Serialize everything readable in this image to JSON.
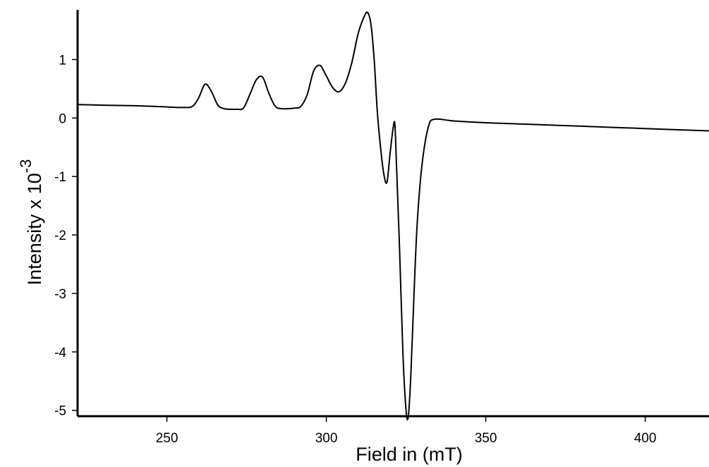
{
  "chart_data": {
    "type": "line",
    "title": "",
    "xlabel": "Field in (mT)",
    "ylabel": "Intensity  x 10",
    "ylabel_exponent": "-3",
    "xlim": [
      222,
      420
    ],
    "ylim": [
      -5.1,
      1.85
    ],
    "x_ticks": [
      "250",
      "300",
      "350",
      "400"
    ],
    "y_ticks": [
      "1",
      "0",
      "-1",
      "-2",
      "-3",
      "-4",
      "-5"
    ],
    "grid": false,
    "legend": "none",
    "line_color": "#000000",
    "series": [
      {
        "x": [
          222,
          230,
          240,
          250,
          255,
          258,
          260,
          262,
          264,
          266,
          268,
          270,
          272,
          274,
          276,
          278,
          280,
          282,
          284,
          286,
          288,
          290,
          292,
          294,
          296,
          298,
          300,
          302,
          304,
          306,
          308,
          310,
          312,
          313,
          314,
          315,
          316,
          317,
          318,
          319,
          320,
          321,
          321.5,
          322,
          323,
          324,
          325,
          325.7,
          326.5,
          327.5,
          328.5,
          330,
          332,
          334,
          340,
          350,
          360,
          380,
          400,
          420
        ],
        "y": [
          0.23,
          0.22,
          0.21,
          0.19,
          0.18,
          0.2,
          0.35,
          0.58,
          0.45,
          0.22,
          0.16,
          0.15,
          0.15,
          0.17,
          0.4,
          0.65,
          0.7,
          0.42,
          0.2,
          0.16,
          0.16,
          0.17,
          0.2,
          0.4,
          0.8,
          0.9,
          0.72,
          0.52,
          0.45,
          0.6,
          0.95,
          1.45,
          1.75,
          1.8,
          1.6,
          1.0,
          0.1,
          -0.5,
          -0.95,
          -1.1,
          -0.6,
          -0.15,
          -0.12,
          -0.8,
          -2.3,
          -4.0,
          -5.0,
          -5.1,
          -4.4,
          -3.0,
          -1.8,
          -0.8,
          -0.15,
          -0.02,
          -0.05,
          -0.08,
          -0.1,
          -0.14,
          -0.18,
          -0.22
        ]
      }
    ]
  }
}
